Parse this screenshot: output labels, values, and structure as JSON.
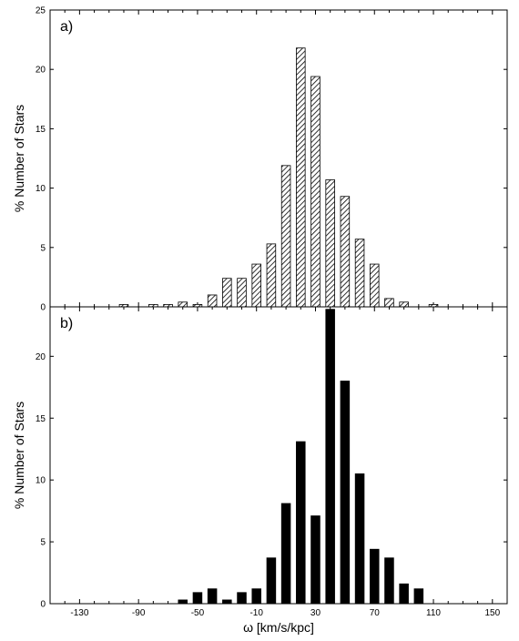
{
  "chart_data": [
    {
      "type": "bar",
      "panel_label": "a)",
      "fill": "hatched",
      "ylabel": "% Number of Stars",
      "xlim": [
        -150,
        160
      ],
      "ylim": [
        0,
        25
      ],
      "yticks": [
        0,
        5,
        10,
        15,
        20,
        25
      ],
      "x": [
        -100,
        -80,
        -70,
        -60,
        -50,
        -40,
        -30,
        -20,
        -10,
        0,
        10,
        20,
        30,
        40,
        50,
        60,
        70,
        80,
        90,
        110
      ],
      "values": [
        0.2,
        0.2,
        0.2,
        0.4,
        0.2,
        1.0,
        2.4,
        2.4,
        3.6,
        5.3,
        11.9,
        21.8,
        19.4,
        10.7,
        9.3,
        5.7,
        3.6,
        0.7,
        0.4,
        0.2
      ]
    },
    {
      "type": "bar",
      "panel_label": "b)",
      "fill": "solid",
      "ylabel": "% Number of Stars",
      "xlabel": "ω [km/s/kpc]",
      "xlim": [
        -150,
        160
      ],
      "ylim": [
        0,
        24
      ],
      "yticks": [
        0,
        5,
        10,
        15,
        20
      ],
      "xticks": [
        -130,
        -90,
        -50,
        -10,
        30,
        70,
        110,
        150
      ],
      "x": [
        -60,
        -50,
        -40,
        -30,
        -20,
        -10,
        0,
        10,
        20,
        30,
        40,
        50,
        60,
        70,
        80,
        90,
        100
      ],
      "values": [
        0.3,
        0.9,
        1.2,
        0.3,
        0.9,
        1.2,
        3.7,
        8.1,
        13.1,
        7.1,
        23.8,
        18.0,
        10.5,
        4.4,
        3.7,
        1.6,
        1.2
      ]
    }
  ]
}
